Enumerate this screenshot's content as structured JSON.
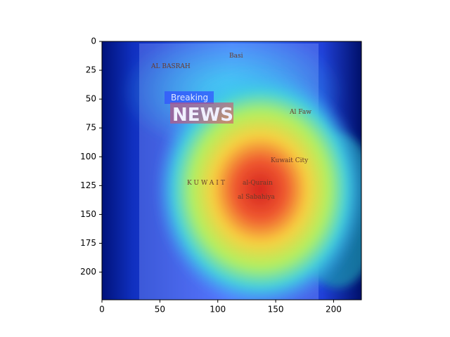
{
  "chart_data": {
    "type": "heatmap",
    "xlim": [
      0,
      224
    ],
    "ylim": [
      224,
      0
    ],
    "xticks": [
      0,
      50,
      100,
      150,
      200
    ],
    "yticks": [
      0,
      25,
      50,
      75,
      100,
      125,
      150,
      175,
      200
    ],
    "image_labels": [
      "AL BASRAH",
      "Basi",
      "Breaking",
      "NEWS",
      "Al Faw",
      "Kuwait City",
      "KUWAIT",
      "al-Qurain",
      "al Sabahiya"
    ]
  }
}
